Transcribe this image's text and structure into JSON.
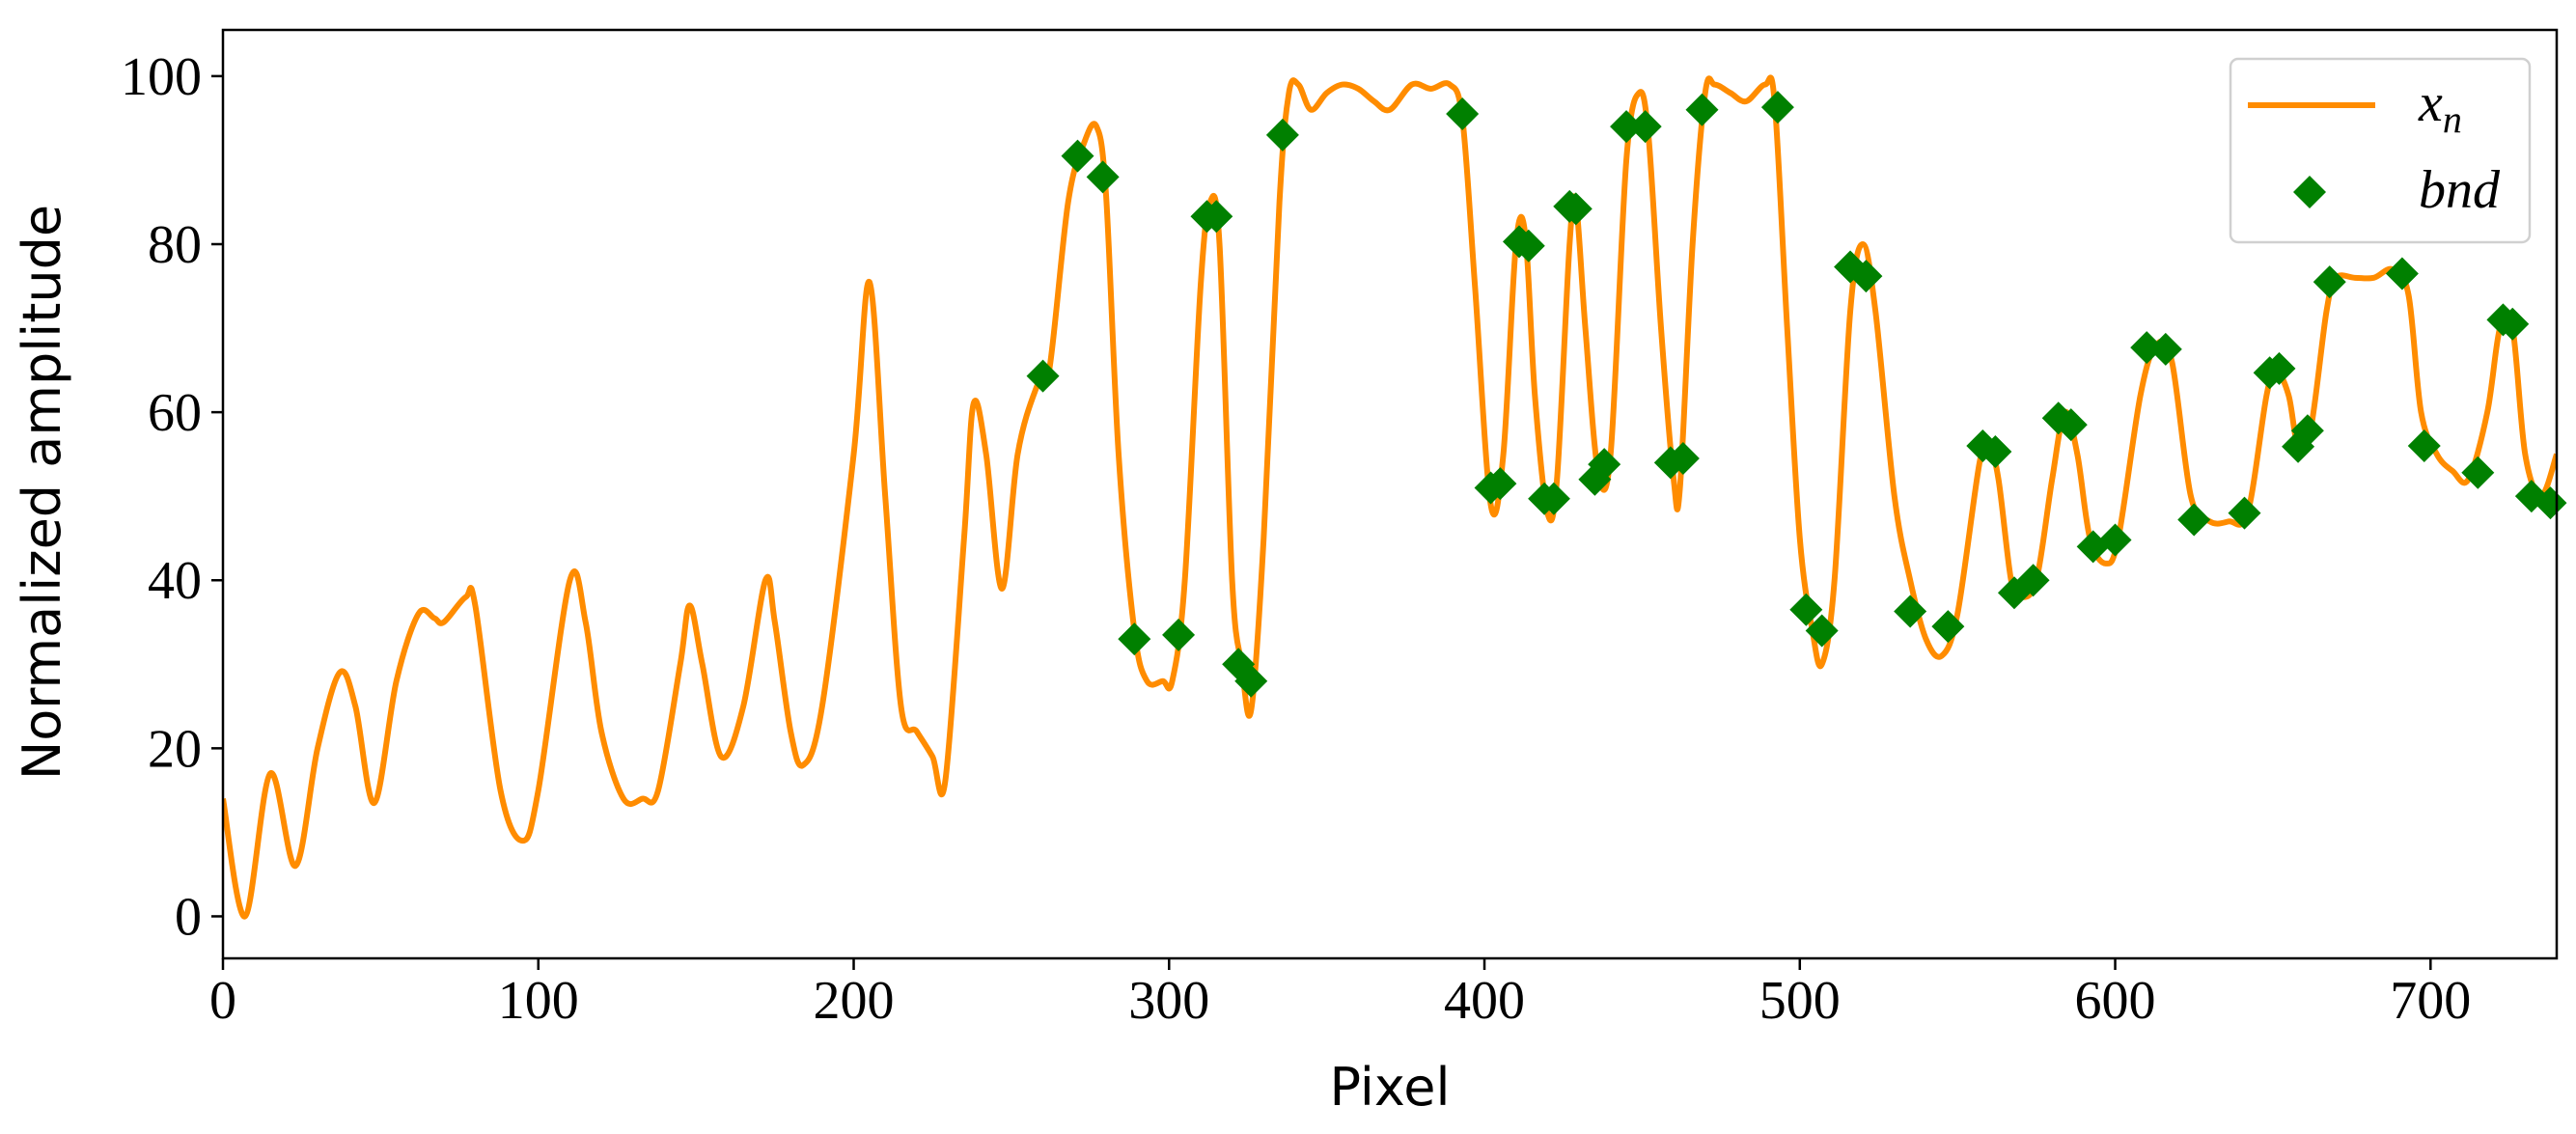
{
  "chart_data": {
    "type": "line_scatter",
    "xlabel": "Pixel",
    "ylabel": "Normalized amplitude",
    "xlim": [
      0,
      740
    ],
    "ylim": [
      -5,
      105.5
    ],
    "xticks": [
      0,
      100,
      200,
      300,
      400,
      500,
      600,
      700
    ],
    "yticks": [
      0,
      20,
      40,
      60,
      80,
      100
    ],
    "legend": "upper right",
    "series": [
      {
        "name": "x_n",
        "kind": "line",
        "color": "#ff8c00",
        "x": [
          0,
          7,
          15,
          23,
          30,
          37,
          42,
          48,
          55,
          62,
          67,
          70,
          77,
          80,
          88,
          95,
          100,
          110,
          115,
          120,
          127,
          133,
          138,
          145,
          148,
          152,
          158,
          165,
          172,
          175,
          180,
          184,
          190,
          200,
          205,
          210,
          215,
          220,
          225,
          229,
          235,
          238,
          242,
          247,
          252,
          258,
          262,
          268,
          273,
          277,
          280,
          284,
          289,
          293,
          298,
          301,
          305,
          310,
          313,
          316,
          320,
          323,
          326,
          330,
          335,
          338,
          341,
          345,
          350,
          355,
          360,
          365,
          370,
          377,
          383,
          389,
          393,
          397,
          402,
          406,
          410,
          413,
          416,
          420,
          423,
          427,
          429,
          432,
          436,
          440,
          445,
          449,
          452,
          456,
          460,
          462,
          466,
          470,
          473,
          478,
          483,
          489,
          492,
          496,
          500,
          504,
          507,
          511,
          516,
          520,
          524,
          530,
          535,
          540,
          545,
          550,
          557,
          560,
          563,
          567,
          570,
          575,
          580,
          584,
          588,
          592,
          597,
          601,
          608,
          613,
          618,
          624,
          630,
          636,
          642,
          648,
          651,
          655,
          658,
          662,
          667,
          670,
          676,
          682,
          688,
          693,
          697,
          702,
          707,
          712,
          718,
          722,
          726,
          730,
          735,
          740
        ],
        "values": [
          14,
          0,
          17,
          6,
          20,
          29,
          25,
          13.5,
          28,
          36,
          35.5,
          35,
          38,
          37,
          15,
          9,
          15,
          40,
          35,
          22,
          14,
          14,
          15,
          30,
          37,
          30,
          19,
          25,
          40,
          35,
          22,
          18,
          25,
          55,
          75.5,
          50,
          25,
          22,
          19,
          16,
          45,
          61,
          55,
          39,
          55,
          63,
          65,
          85,
          92,
          94,
          86,
          55,
          34,
          28,
          28,
          28,
          40,
          75,
          85,
          80,
          40,
          30,
          24.5,
          45,
          85,
          98,
          99,
          96,
          98,
          99,
          98.5,
          97,
          96,
          99,
          98.5,
          99,
          95,
          75,
          49,
          55,
          80,
          81,
          62,
          48,
          52,
          80,
          85,
          70,
          53,
          55,
          90,
          98,
          93,
          70,
          52,
          51,
          80,
          98,
          99,
          98,
          97,
          99,
          97,
          70,
          45,
          34,
          30,
          40,
          72,
          80,
          72,
          50,
          40,
          33,
          31,
          36,
          54,
          56,
          52,
          40,
          38,
          40,
          52,
          60,
          55,
          45,
          42,
          45,
          62,
          68,
          66,
          50,
          47,
          47,
          48,
          62,
          65,
          62,
          56,
          58,
          72,
          76,
          76,
          76,
          77,
          74,
          60,
          55,
          53,
          52,
          60,
          70,
          70,
          55,
          50,
          55
        ]
      },
      {
        "name": "bnd",
        "kind": "scatter",
        "color": "#008000",
        "x": [
          260,
          271,
          279,
          289,
          303,
          312,
          315,
          322,
          326,
          336,
          393,
          402,
          405,
          411,
          414,
          419,
          422,
          427,
          429,
          435,
          438,
          445,
          451,
          459,
          463,
          469,
          493,
          502,
          507,
          516,
          521,
          535,
          547,
          558,
          562,
          568,
          574,
          582,
          586,
          593,
          600,
          610,
          616,
          625,
          641,
          649,
          652,
          658,
          661,
          668,
          691,
          698,
          715,
          723,
          726,
          732,
          738
        ],
        "values": [
          64.3,
          90.5,
          88,
          33,
          33.5,
          83.3,
          83.3,
          30,
          28,
          93,
          95.5,
          51,
          51.5,
          80.3,
          79.8,
          49.7,
          49.7,
          84.5,
          84.2,
          52,
          53.8,
          94,
          94,
          54,
          54.5,
          96,
          96.3,
          36.5,
          34,
          77.3,
          76.2,
          36.3,
          34.5,
          56,
          55.3,
          38.5,
          40,
          59.3,
          58.5,
          44,
          44.8,
          67.7,
          67.5,
          47.2,
          48,
          64.7,
          65.2,
          55.9,
          57.8,
          75.5,
          76.5,
          56,
          52.8,
          71,
          70.5,
          50,
          49.2
        ]
      }
    ]
  }
}
